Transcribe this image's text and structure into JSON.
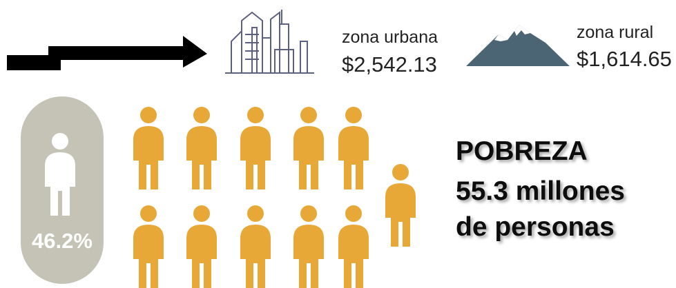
{
  "urban": {
    "label": "zona urbana",
    "amount": "$2,542.13"
  },
  "rural": {
    "label": "zona rural",
    "amount": "$1,614.65"
  },
  "share": "46.2%",
  "poverty": {
    "title": "POBREZA",
    "line1": "55.3 millones",
    "line2": "de personas"
  }
}
